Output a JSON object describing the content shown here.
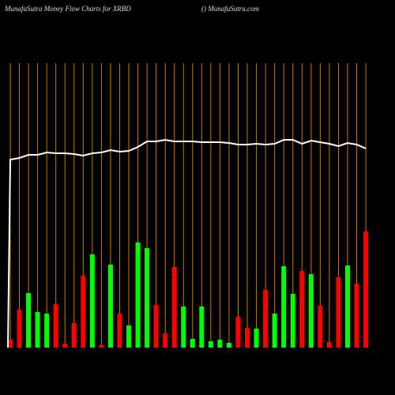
{
  "chart_data": {
    "type": "bar",
    "title": "MunafaSutra  Money Flow  Charts for XRBD",
    "subtitle": "() MunafaSutra.com",
    "values": [
      10,
      48,
      69,
      45,
      43,
      55,
      5,
      31,
      91,
      118,
      3,
      105,
      43,
      28,
      133,
      126,
      54,
      18,
      102,
      52,
      11,
      52,
      8,
      10,
      6,
      39,
      25,
      24,
      73,
      43,
      103,
      68,
      97,
      93,
      53,
      7,
      89,
      104,
      81,
      147
    ],
    "colors": [
      "#ff0000",
      "#ff0000",
      "#00ff00",
      "#00ff00",
      "#00ff00",
      "#ff0000",
      "#ff0000",
      "#ff0000",
      "#ff0000",
      "#00ff00",
      "#ff0000",
      "#00ff00",
      "#ff0000",
      "#00ff00",
      "#00ff00",
      "#00ff00",
      "#ff0000",
      "#ff0000",
      "#ff0000",
      "#00ff00",
      "#00ff00",
      "#00ff00",
      "#00ff00",
      "#00ff00",
      "#00ff00",
      "#ff0000",
      "#ff0000",
      "#00ff00",
      "#ff0000",
      "#00ff00",
      "#00ff00",
      "#00ff00",
      "#ff0000",
      "#00ff00",
      "#ff0000",
      "#ff0000",
      "#ff0000",
      "#00ff00",
      "#ff0000",
      "#ff0000"
    ],
    "line": {
      "color": "#ffffff",
      "values": [
        238,
        240,
        244,
        244,
        247,
        246,
        246,
        245,
        243,
        246,
        247,
        250,
        248,
        249,
        254,
        261,
        261,
        263,
        261,
        261,
        261,
        260,
        260,
        260,
        259,
        257,
        257,
        258,
        257,
        258,
        263,
        263,
        258,
        262,
        260,
        258,
        255,
        259,
        257,
        252
      ]
    },
    "ylim": [
      0,
      360
    ],
    "grid_color": "#cc7a00"
  }
}
